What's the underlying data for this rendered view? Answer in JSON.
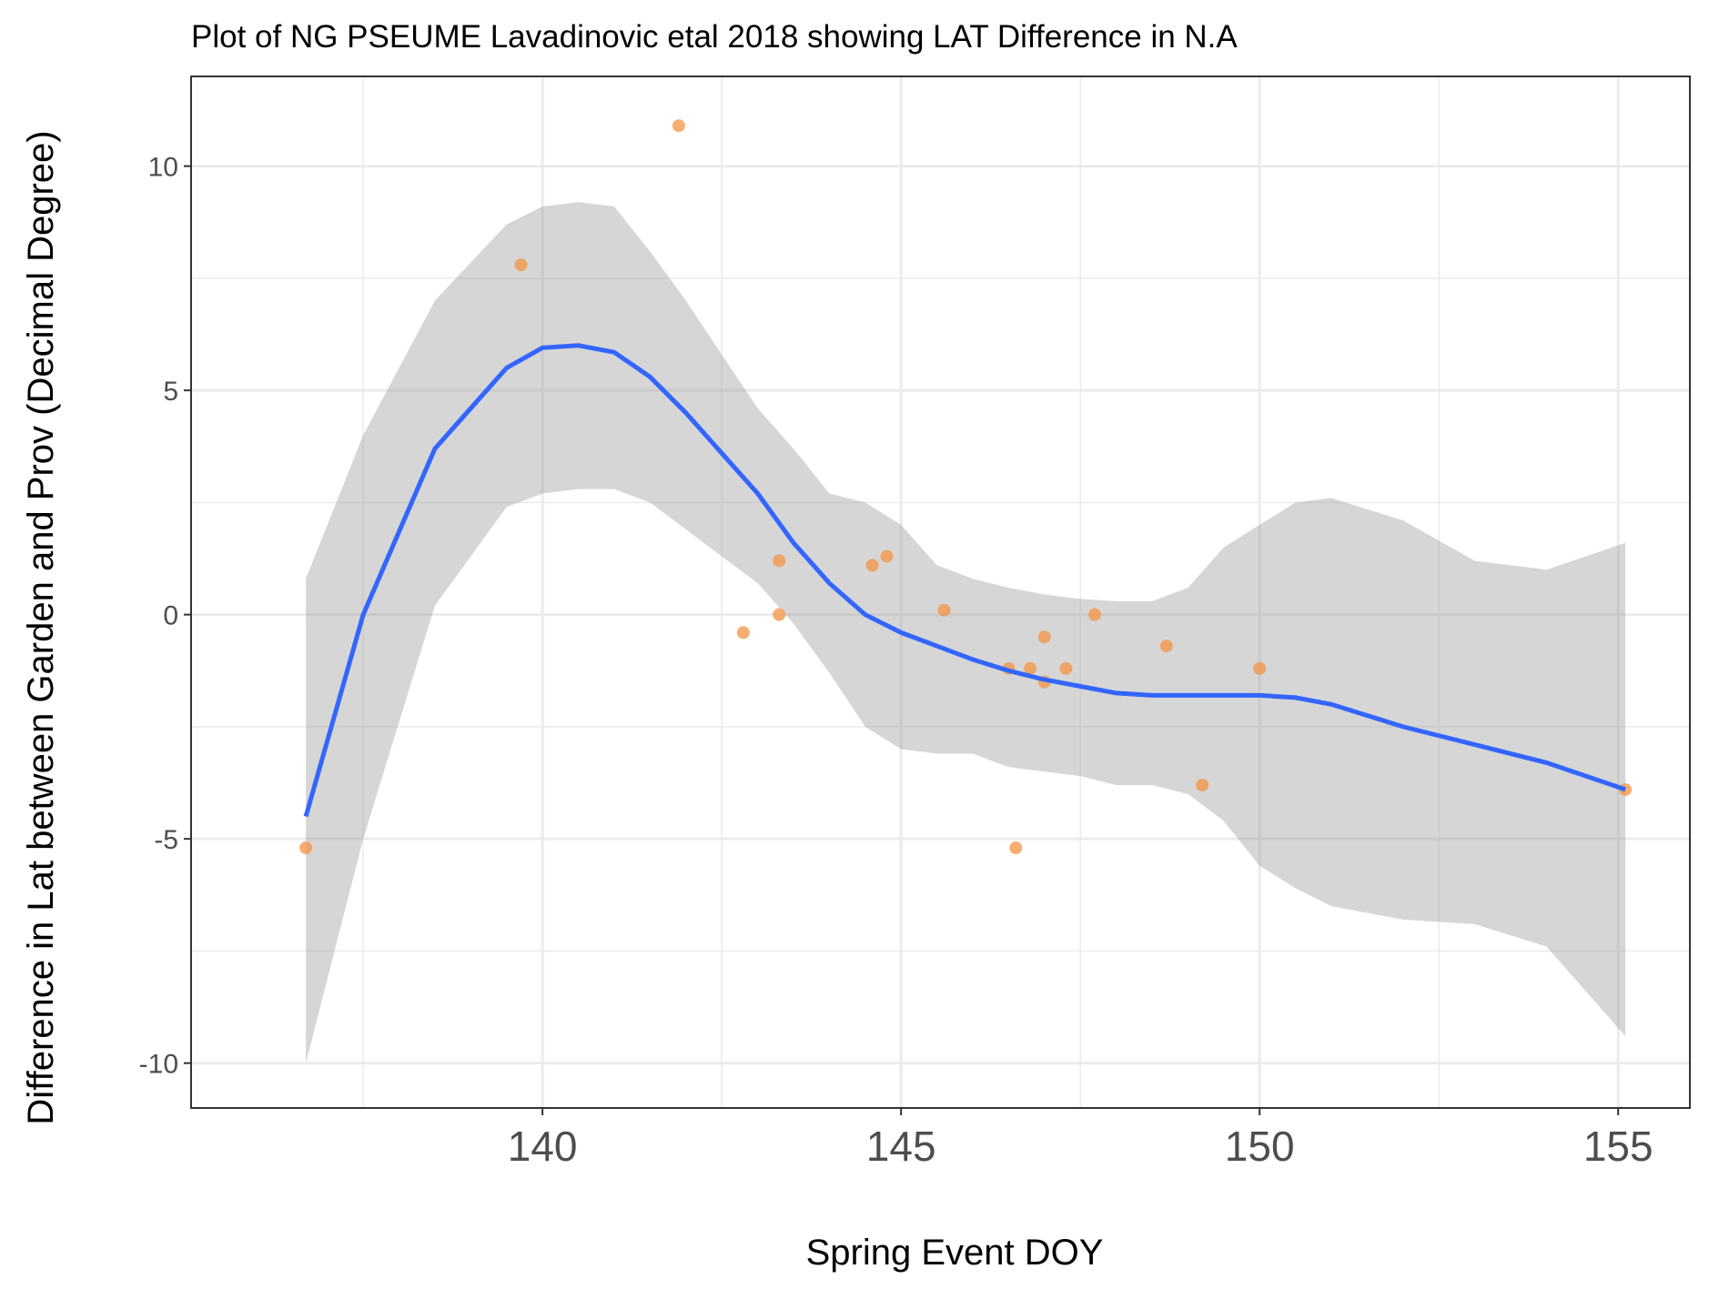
{
  "chart_data": {
    "type": "scatter",
    "title": "Plot of NG PSEUME Lavadinovic etal 2018 showing LAT Difference in N.A",
    "xlabel": "Spring Event DOY",
    "ylabel": "Difference in Lat between Garden and Prov (Decimal Degree)",
    "xlim": [
      135.1,
      156.0
    ],
    "ylim": [
      -11.0,
      12.0
    ],
    "x_ticks": [
      140,
      145,
      150,
      155
    ],
    "x_minor_ticks": [
      137.5,
      142.5,
      147.5,
      152.5
    ],
    "y_ticks": [
      -10,
      -5,
      0,
      5,
      10
    ],
    "y_minor_ticks": [
      -7.5,
      -2.5,
      2.5,
      7.5
    ],
    "grid": true,
    "legend": "none",
    "colors": {
      "points": "#f59342",
      "smooth_line": "#3366ff",
      "ribbon": "#999999",
      "panel_border": "#333333",
      "grid": "#ebebeb"
    },
    "points": [
      {
        "x": 136.7,
        "y": -5.2
      },
      {
        "x": 139.7,
        "y": 7.8
      },
      {
        "x": 141.9,
        "y": 10.9
      },
      {
        "x": 142.8,
        "y": -0.4
      },
      {
        "x": 143.3,
        "y": 1.2
      },
      {
        "x": 143.3,
        "y": 0.0
      },
      {
        "x": 144.6,
        "y": 1.1
      },
      {
        "x": 144.8,
        "y": 1.3
      },
      {
        "x": 145.6,
        "y": 0.1
      },
      {
        "x": 146.5,
        "y": -1.2
      },
      {
        "x": 146.6,
        "y": -5.2
      },
      {
        "x": 146.8,
        "y": -1.2
      },
      {
        "x": 147.0,
        "y": -0.5
      },
      {
        "x": 147.0,
        "y": -1.5
      },
      {
        "x": 147.3,
        "y": -1.2
      },
      {
        "x": 147.7,
        "y": 0.0
      },
      {
        "x": 148.7,
        "y": -0.7
      },
      {
        "x": 149.2,
        "y": -3.8
      },
      {
        "x": 150.0,
        "y": -1.2
      },
      {
        "x": 155.1,
        "y": -3.9
      }
    ],
    "smooth": {
      "x": [
        136.7,
        137.5,
        138.5,
        139.5,
        140.0,
        140.5,
        141.0,
        141.5,
        142.0,
        142.5,
        143.0,
        143.5,
        144.0,
        144.5,
        145.0,
        145.5,
        146.0,
        146.5,
        147.0,
        147.5,
        148.0,
        148.5,
        149.0,
        149.5,
        150.0,
        150.5,
        151.0,
        152.0,
        153.0,
        154.0,
        155.1
      ],
      "y": [
        -4.5,
        0.0,
        3.7,
        5.5,
        5.95,
        6.0,
        5.85,
        5.3,
        4.5,
        3.6,
        2.7,
        1.6,
        0.7,
        0.0,
        -0.4,
        -0.7,
        -1.0,
        -1.25,
        -1.45,
        -1.6,
        -1.75,
        -1.8,
        -1.8,
        -1.8,
        -1.8,
        -1.85,
        -2.0,
        -2.5,
        -2.9,
        -3.3,
        -3.9
      ],
      "upper": [
        0.8,
        4.0,
        7.0,
        8.7,
        9.1,
        9.2,
        9.1,
        8.1,
        7.0,
        5.8,
        4.6,
        3.7,
        2.7,
        2.5,
        2.0,
        1.1,
        0.8,
        0.6,
        0.45,
        0.35,
        0.3,
        0.3,
        0.6,
        1.5,
        2.0,
        2.5,
        2.6,
        2.1,
        1.2,
        1.0,
        1.6
      ],
      "lower": [
        -10.0,
        -5.0,
        0.2,
        2.4,
        2.7,
        2.8,
        2.8,
        2.5,
        1.9,
        1.3,
        0.7,
        -0.2,
        -1.3,
        -2.5,
        -3.0,
        -3.1,
        -3.1,
        -3.4,
        -3.5,
        -3.6,
        -3.8,
        -3.8,
        -4.0,
        -4.6,
        -5.6,
        -6.1,
        -6.5,
        -6.8,
        -6.9,
        -7.4,
        -9.4
      ]
    }
  }
}
